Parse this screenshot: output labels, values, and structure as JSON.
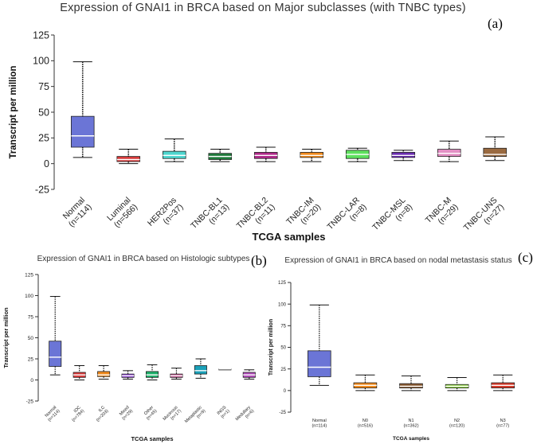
{
  "chart_data": [
    {
      "type": "box",
      "panel": "(a)",
      "title": "Expression of GNAI1 in BRCA based on Major subclasses (with TNBC types)",
      "xlabel": "TCGA samples",
      "ylabel": "Transcript per million",
      "ylim": [
        -25,
        125
      ],
      "yticks": [
        -25,
        0,
        25,
        50,
        75,
        100,
        125
      ],
      "categories": [
        "Normal\n(n=114)",
        "Luminal\n(n=566)",
        "HER2Pos\n(n=37)",
        "TNBC-BL1\n(n=13)",
        "TNBC-BL2\n(n=11)",
        "TNBC-IM\n(n=20)",
        "TNBC-LAR\n(n=8)",
        "TNBC-MSL\n(n=8)",
        "TNBC-M\n(n=29)",
        "TNBC-UNS\n(n=27)"
      ],
      "colors": [
        "#6b75d6",
        "#d63a3a",
        "#4fd6cf",
        "#1f7a3a",
        "#b02a8a",
        "#f08a1c",
        "#5ee05e",
        "#6a2db0",
        "#e38fc4",
        "#9a6a40"
      ],
      "boxes": [
        {
          "min": 6,
          "q1": 16,
          "median": 27,
          "q3": 46,
          "max": 99
        },
        {
          "min": 0,
          "q1": 2,
          "median": 4,
          "q3": 7,
          "max": 14
        },
        {
          "min": 2,
          "q1": 5,
          "median": 8,
          "q3": 12,
          "max": 24
        },
        {
          "min": 2,
          "q1": 4,
          "median": 7,
          "q3": 10,
          "max": 14
        },
        {
          "min": 2,
          "q1": 5,
          "median": 8,
          "q3": 11,
          "max": 16
        },
        {
          "min": 2,
          "q1": 6,
          "median": 8,
          "q3": 11,
          "max": 14
        },
        {
          "min": 2,
          "q1": 5,
          "median": 9,
          "q3": 13,
          "max": 15
        },
        {
          "min": 3,
          "q1": 6,
          "median": 8,
          "q3": 11,
          "max": 13
        },
        {
          "min": 2,
          "q1": 7,
          "median": 10,
          "q3": 14,
          "max": 22
        },
        {
          "min": 3,
          "q1": 7,
          "median": 9,
          "q3": 15,
          "max": 26
        }
      ]
    },
    {
      "type": "box",
      "panel": "(b)",
      "title": "Expression of GNAI1 in BRCA based on Histologic subtypes",
      "xlabel": "TCGA samples",
      "ylabel": "Transcript per million",
      "ylim": [
        -25,
        125
      ],
      "yticks": [
        -25,
        0,
        25,
        50,
        75,
        100,
        125
      ],
      "categories": [
        "Normal\n(n=114)",
        "IDC\n(n=784)",
        "ILC\n(n=203)",
        "Mixed\n(n=29)",
        "Other\n(n=45)",
        "Mucinous\n(n=17)",
        "Metaplastic\n(n=9)",
        "INGS\n(n=1)",
        "Medullary\n(n=6)"
      ],
      "colors": [
        "#6b75d6",
        "#d63a3a",
        "#f08a1c",
        "#8a3ad6",
        "#1fb06a",
        "#c04a8a",
        "#1aa0b8",
        "#777777",
        "#b04ab8"
      ],
      "boxes": [
        {
          "min": 6,
          "q1": 16,
          "median": 27,
          "q3": 46,
          "max": 99
        },
        {
          "min": 0,
          "q1": 3,
          "median": 6,
          "q3": 9,
          "max": 17
        },
        {
          "min": 1,
          "q1": 4,
          "median": 6,
          "q3": 10,
          "max": 17
        },
        {
          "min": 1,
          "q1": 3,
          "median": 5,
          "q3": 7,
          "max": 11
        },
        {
          "min": 0,
          "q1": 3,
          "median": 6,
          "q3": 10,
          "max": 18
        },
        {
          "min": 1,
          "q1": 3,
          "median": 5,
          "q3": 7,
          "max": 14
        },
        {
          "min": 2,
          "q1": 7,
          "median": 11,
          "q3": 17,
          "max": 25
        },
        {
          "min": 13,
          "q1": 13,
          "median": 13,
          "q3": 13,
          "max": 13
        },
        {
          "min": 1,
          "q1": 3,
          "median": 6,
          "q3": 9,
          "max": 12
        }
      ]
    },
    {
      "type": "box",
      "panel": "(c)",
      "title": "Expression of GNAI1 in BRCA based on nodal metastasis status",
      "xlabel": "TCGA samples",
      "ylabel": "Transcript per million",
      "ylim": [
        -25,
        125
      ],
      "yticks": [
        -25,
        0,
        25,
        50,
        75,
        100,
        125
      ],
      "categories": [
        "Normal\n(n=114)",
        "N0\n(n=516)",
        "N1\n(n=362)",
        "N2\n(n=120)",
        "N3\n(n=77)"
      ],
      "colors": [
        "#6b75d6",
        "#f08a1c",
        "#8a5a30",
        "#8ad63a",
        "#d63a2a"
      ],
      "boxes": [
        {
          "min": 6,
          "q1": 16,
          "median": 27,
          "q3": 46,
          "max": 99
        },
        {
          "min": 0,
          "q1": 3,
          "median": 6,
          "q3": 9,
          "max": 18
        },
        {
          "min": 0,
          "q1": 3,
          "median": 5,
          "q3": 8,
          "max": 17
        },
        {
          "min": 0,
          "q1": 3,
          "median": 5,
          "q3": 7,
          "max": 15
        },
        {
          "min": 0,
          "q1": 3,
          "median": 6,
          "q3": 9,
          "max": 18
        }
      ]
    }
  ]
}
